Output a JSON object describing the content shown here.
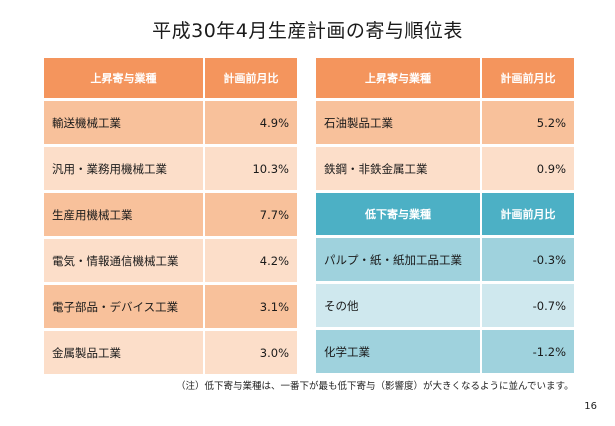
{
  "title": "平成30年4月生産計画の寄与順位表",
  "left_table": {
    "header": {
      "industry": "上昇寄与業種",
      "value": "計画前月比"
    },
    "rows": [
      {
        "industry": "輸送機械工業",
        "value": "4.9%"
      },
      {
        "industry": "汎用・業務用機械工業",
        "value": "10.3%"
      },
      {
        "industry": "生産用機械工業",
        "value": "7.7%"
      },
      {
        "industry": "電気・情報通信機械工業",
        "value": "4.2%"
      },
      {
        "industry": "電子部品・デバイス工業",
        "value": "3.1%"
      },
      {
        "industry": "金属製品工業",
        "value": "3.0%"
      }
    ]
  },
  "right_table": {
    "rise_header": {
      "industry": "上昇寄与業種",
      "value": "計画前月比"
    },
    "rise_rows": [
      {
        "industry": "石油製品工業",
        "value": "5.2%"
      },
      {
        "industry": "鉄鋼・非鉄金属工業",
        "value": "0.9%"
      }
    ],
    "fall_header": {
      "industry": "低下寄与業種",
      "value": "計画前月比"
    },
    "fall_rows": [
      {
        "industry": "パルプ・紙・紙加工品工業",
        "value": "-0.3%"
      },
      {
        "industry": "その他",
        "value": "-0.7%"
      },
      {
        "industry": "化学工業",
        "value": "-1.2%"
      }
    ]
  },
  "note": "（注）低下寄与業種は、一番下が最も低下寄与（影響度）が大きくなるように並んでいます。",
  "page_number": "16",
  "colors": {
    "rise_header": "#f4955d",
    "rise_row_dark": "#f8c19b",
    "rise_row_light": "#fcdec9",
    "fall_header": "#4cb0c5",
    "fall_row_dark": "#9fd2dd",
    "fall_row_light": "#cfe8ee"
  }
}
